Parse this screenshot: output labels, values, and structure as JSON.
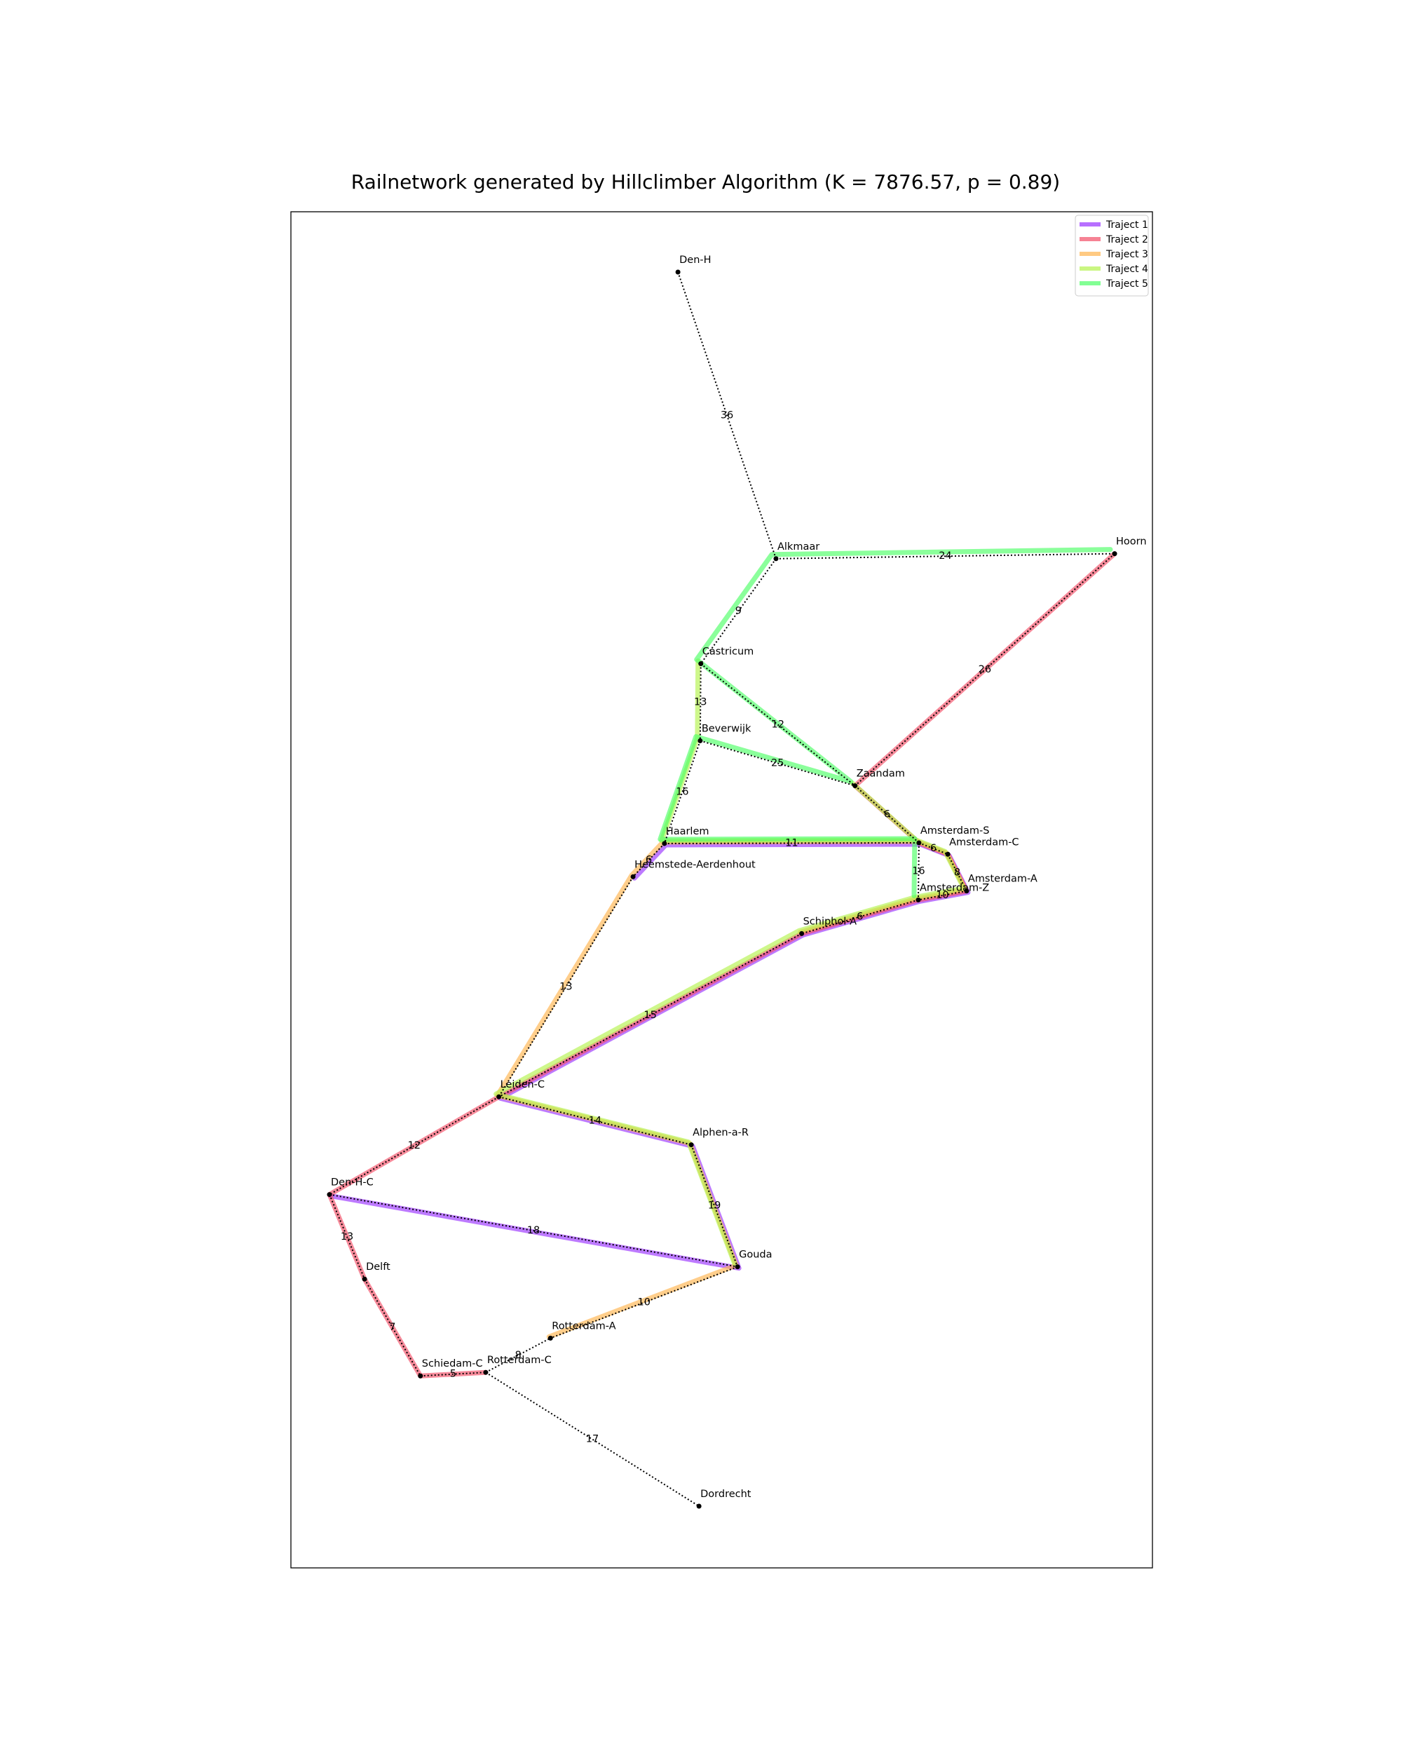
{
  "title": "Railnetwork generated by Hillclimber Algorithm (K = 7876.57, p = 0.89)",
  "chart_data": {
    "type": "network",
    "title": "Railnetwork generated by Hillclimber Algorithm (K = 7876.57, p = 0.89)",
    "legend_position": "top-right",
    "grid": false,
    "stations": [
      {
        "name": "Den-H",
        "lon": 4.6487,
        "lat": 52.8889
      },
      {
        "name": "Alkmaar",
        "lon": 4.74,
        "lat": 52.6378
      },
      {
        "name": "Hoorn",
        "lon": 5.0553,
        "lat": 52.6422
      },
      {
        "name": "Castricum",
        "lon": 4.67,
        "lat": 52.5458
      },
      {
        "name": "Beverwijk",
        "lon": 4.6694,
        "lat": 52.4783
      },
      {
        "name": "Zaandam",
        "lon": 4.8136,
        "lat": 52.4389
      },
      {
        "name": "Haarlem",
        "lon": 4.6361,
        "lat": 52.3883
      },
      {
        "name": "Amsterdam-S",
        "lon": 4.8731,
        "lat": 52.3889
      },
      {
        "name": "Amsterdam-C",
        "lon": 4.9,
        "lat": 52.3789
      },
      {
        "name": "Amsterdam-A",
        "lon": 4.9175,
        "lat": 52.3467
      },
      {
        "name": "Amsterdam-Z",
        "lon": 4.8725,
        "lat": 52.3389
      },
      {
        "name": "Heemstede-Aerdenhout",
        "lon": 4.6069,
        "lat": 52.3592
      },
      {
        "name": "Schiphol-A",
        "lon": 4.7639,
        "lat": 52.3094
      },
      {
        "name": "Leiden-C",
        "lon": 4.4819,
        "lat": 52.1664
      },
      {
        "name": "Alphen-a-R",
        "lon": 4.6611,
        "lat": 52.1244
      },
      {
        "name": "Den-H-C",
        "lon": 4.3242,
        "lat": 52.0808
      },
      {
        "name": "Gouda",
        "lon": 4.7042,
        "lat": 52.0175
      },
      {
        "name": "Delft",
        "lon": 4.3569,
        "lat": 52.0067
      },
      {
        "name": "Rotterdam-A",
        "lon": 4.53,
        "lat": 51.955
      },
      {
        "name": "Schiedam-C",
        "lon": 4.4089,
        "lat": 51.9219
      },
      {
        "name": "Rotterdam-C",
        "lon": 4.4697,
        "lat": 51.925
      },
      {
        "name": "Dordrecht",
        "lon": 4.6683,
        "lat": 51.8078
      }
    ],
    "connections": [
      {
        "from": "Den-H",
        "to": "Alkmaar",
        "duration": 36
      },
      {
        "from": "Alkmaar",
        "to": "Hoorn",
        "duration": 24
      },
      {
        "from": "Alkmaar",
        "to": "Castricum",
        "duration": 9
      },
      {
        "from": "Hoorn",
        "to": "Zaandam",
        "duration": 26
      },
      {
        "from": "Castricum",
        "to": "Beverwijk",
        "duration": 13
      },
      {
        "from": "Castricum",
        "to": "Zaandam",
        "duration": 12
      },
      {
        "from": "Beverwijk",
        "to": "Zaandam",
        "duration": 25
      },
      {
        "from": "Beverwijk",
        "to": "Haarlem",
        "duration": 16
      },
      {
        "from": "Zaandam",
        "to": "Amsterdam-S",
        "duration": 6
      },
      {
        "from": "Haarlem",
        "to": "Amsterdam-S",
        "duration": 11
      },
      {
        "from": "Haarlem",
        "to": "Heemstede-Aerdenhout",
        "duration": 6
      },
      {
        "from": "Amsterdam-S",
        "to": "Amsterdam-C",
        "duration": 6
      },
      {
        "from": "Amsterdam-S",
        "to": "Amsterdam-Z",
        "duration": 16
      },
      {
        "from": "Amsterdam-C",
        "to": "Amsterdam-A",
        "duration": 8
      },
      {
        "from": "Amsterdam-A",
        "to": "Amsterdam-Z",
        "duration": 10
      },
      {
        "from": "Amsterdam-Z",
        "to": "Schiphol-A",
        "duration": 6
      },
      {
        "from": "Schiphol-A",
        "to": "Leiden-C",
        "duration": 15
      },
      {
        "from": "Heemstede-Aerdenhout",
        "to": "Leiden-C",
        "duration": 13
      },
      {
        "from": "Leiden-C",
        "to": "Alphen-a-R",
        "duration": 14
      },
      {
        "from": "Leiden-C",
        "to": "Den-H-C",
        "duration": 12
      },
      {
        "from": "Alphen-a-R",
        "to": "Gouda",
        "duration": 19
      },
      {
        "from": "Den-H-C",
        "to": "Gouda",
        "duration": 18
      },
      {
        "from": "Den-H-C",
        "to": "Delft",
        "duration": 13
      },
      {
        "from": "Gouda",
        "to": "Rotterdam-A",
        "duration": 10
      },
      {
        "from": "Delft",
        "to": "Schiedam-C",
        "duration": 7
      },
      {
        "from": "Schiedam-C",
        "to": "Rotterdam-C",
        "duration": 5
      },
      {
        "from": "Rotterdam-C",
        "to": "Rotterdam-A",
        "duration": 8
      },
      {
        "from": "Rotterdam-C",
        "to": "Dordrecht",
        "duration": 17
      }
    ],
    "trajects": [
      {
        "name": "Traject 1",
        "color": "#9933ff",
        "stations": [
          "Heemstede-Aerdenhout",
          "Haarlem",
          "Amsterdam-S",
          "Amsterdam-C",
          "Amsterdam-A",
          "Amsterdam-Z",
          "Schiphol-A",
          "Leiden-C",
          "Alphen-a-R",
          "Gouda",
          "Den-H-C"
        ]
      },
      {
        "name": "Traject 2",
        "color": "#f24d66",
        "stations": [
          "Hoorn",
          "Zaandam",
          "Amsterdam-S",
          "Amsterdam-C",
          "Amsterdam-A",
          "Amsterdam-Z",
          "Schiphol-A",
          "Leiden-C",
          "Den-H-C",
          "Delft",
          "Schiedam-C",
          "Rotterdam-C"
        ]
      },
      {
        "name": "Traject 3",
        "color": "#ffb34d",
        "stations": [
          "Rotterdam-A",
          "Gouda",
          "Alphen-a-R",
          "Leiden-C",
          "Heemstede-Aerdenhout",
          "Haarlem",
          "Amsterdam-S",
          "Amsterdam-C",
          "Amsterdam-A",
          "Amsterdam-Z",
          "Schiphol-A"
        ]
      },
      {
        "name": "Traject 4",
        "color": "#b3f24d",
        "stations": [
          "Castricum",
          "Beverwijk",
          "Haarlem",
          "Amsterdam-S",
          "Zaandam",
          "Amsterdam-S",
          "Amsterdam-C",
          "Amsterdam-A",
          "Amsterdam-Z",
          "Schiphol-A",
          "Leiden-C",
          "Alphen-a-R",
          "Gouda"
        ]
      },
      {
        "name": "Traject 5",
        "color": "#4dff66",
        "stations": [
          "Hoorn",
          "Alkmaar",
          "Castricum",
          "Zaandam",
          "Beverwijk",
          "Haarlem",
          "Amsterdam-S",
          "Amsterdam-Z"
        ]
      }
    ]
  }
}
